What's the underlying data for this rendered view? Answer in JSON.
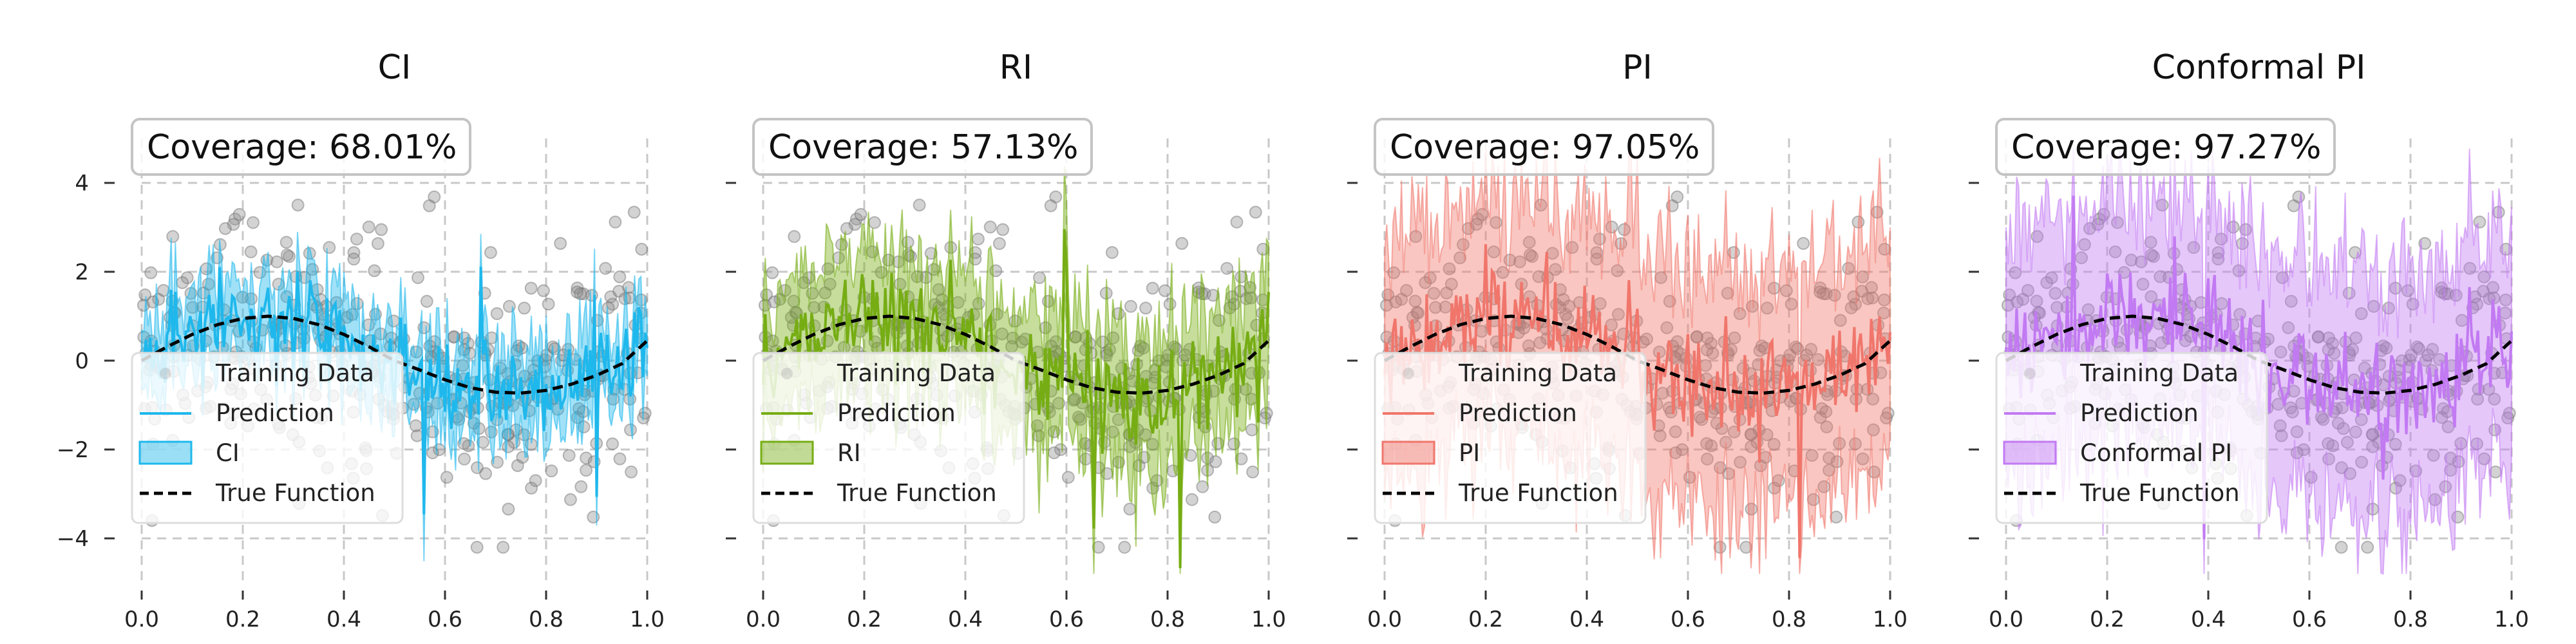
{
  "chart_data": [
    {
      "type": "line",
      "title": "CI",
      "xlim": [
        0,
        1
      ],
      "ylim": [
        -5,
        5
      ],
      "x_ticks": [
        "0.0",
        "0.2",
        "0.4",
        "0.6",
        "0.8",
        "1.0"
      ],
      "y_ticks": [
        "4",
        "2",
        "0",
        "−2",
        "−4"
      ],
      "show_y_labels": true,
      "grid": true,
      "coverage": "Coverage: 68.01%",
      "band": "narrow",
      "color": "#1fb8ec",
      "legend": [
        "Training Data",
        "Prediction",
        "CI",
        "True Function"
      ],
      "legend_loc": "lower-left",
      "true_function": {
        "x": [
          0,
          0.05,
          0.1,
          0.15,
          0.2,
          0.25,
          0.3,
          0.35,
          0.4,
          0.45,
          0.5,
          0.55,
          0.6,
          0.65,
          0.7,
          0.75,
          0.8,
          0.85,
          0.9,
          0.95,
          1.0
        ],
        "y": [
          0,
          0.31,
          0.59,
          0.81,
          0.95,
          1.0,
          0.95,
          0.81,
          0.59,
          0.31,
          0,
          -0.21,
          -0.43,
          -0.61,
          -0.71,
          -0.73,
          -0.67,
          -0.53,
          -0.33,
          -0.07,
          0.45
        ]
      }
    },
    {
      "type": "line",
      "title": "RI",
      "xlim": [
        0,
        1
      ],
      "ylim": [
        -5,
        5
      ],
      "x_ticks": [
        "0.0",
        "0.2",
        "0.4",
        "0.6",
        "0.8",
        "1.0"
      ],
      "show_y_labels": false,
      "grid": true,
      "coverage": "Coverage: 57.13%",
      "band": "medium",
      "color": "#76ad14",
      "legend": [
        "Training Data",
        "Prediction",
        "RI",
        "True Function"
      ],
      "legend_loc": "lower-left"
    },
    {
      "type": "line",
      "title": "PI",
      "xlim": [
        0,
        1
      ],
      "ylim": [
        -5,
        5
      ],
      "x_ticks": [
        "0.0",
        "0.2",
        "0.4",
        "0.6",
        "0.8",
        "1.0"
      ],
      "show_y_labels": false,
      "grid": true,
      "coverage": "Coverage: 97.05%",
      "band": "wide",
      "color": "#f0766c",
      "legend": [
        "Training Data",
        "Prediction",
        "PI",
        "True Function"
      ],
      "legend_loc": "lower-left"
    },
    {
      "type": "line",
      "title": "Conformal PI",
      "xlim": [
        0,
        1
      ],
      "ylim": [
        -5,
        5
      ],
      "x_ticks": [
        "0.0",
        "0.2",
        "0.4",
        "0.6",
        "0.8",
        "1.0"
      ],
      "show_y_labels": false,
      "grid": true,
      "coverage": "Coverage: 97.27%",
      "band": "wide",
      "color": "#c27af2",
      "legend": [
        "Training Data",
        "Prediction",
        "Conformal PI",
        "True Function"
      ],
      "legend_loc": "lower-left"
    }
  ],
  "colors": {
    "training_points": "#8c8c8c",
    "true_function": "#000000"
  }
}
